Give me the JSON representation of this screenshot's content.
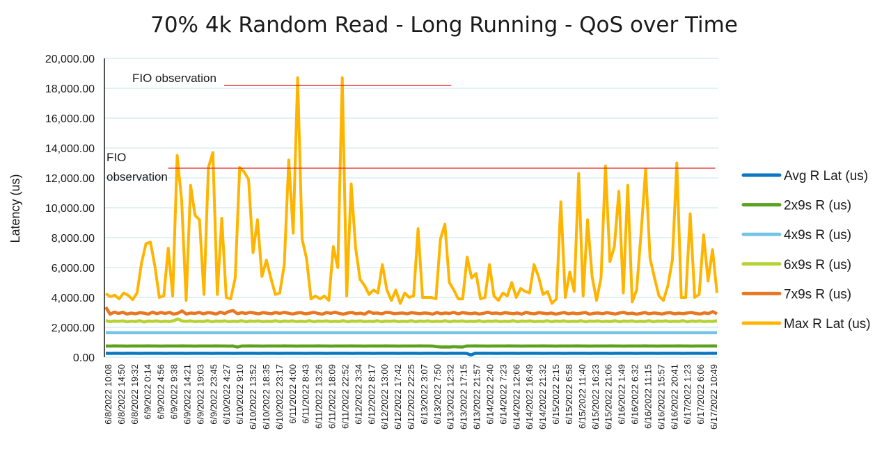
{
  "chart_data": {
    "type": "line",
    "title": "70% 4k Random Read - Long Running - QoS over Time",
    "ylabel": "Latency (us)",
    "xlabel": "",
    "ylim": [
      0,
      20000
    ],
    "yticks": [
      "0.00",
      "2,000.00",
      "4,000.00",
      "6,000.00",
      "8,000.00",
      "10,000.00",
      "12,000.00",
      "14,000.00",
      "16,000.00",
      "18,000.00",
      "20,000.00"
    ],
    "ytick_values": [
      0,
      2000,
      4000,
      6000,
      8000,
      10000,
      12000,
      14000,
      16000,
      18000,
      20000
    ],
    "grid": true,
    "legend": "right",
    "colors": {
      "avg": "#0b77c2",
      "p2x9": "#5ba21f",
      "p4x9": "#74c4e6",
      "p6x9": "#b5d334",
      "p7x9": "#e87722",
      "max": "#ffb400",
      "annotation_line": "#e52222",
      "grid": "#cdeaf2"
    },
    "xtick_labels": [
      "6/8/2022 10:08",
      "6/8/2022 14:50",
      "6/8/2022 19:32",
      "6/9/2022 0:14",
      "6/9/2022 4:56",
      "6/9/2022 9:38",
      "6/9/2022 14:21",
      "6/9/2022 19:03",
      "6/9/2022 23:45",
      "6/10/2022 4:27",
      "6/10/2022 9:10",
      "6/10/2022 13:52",
      "6/10/2022 18:35",
      "6/10/2022 23:17",
      "6/11/2022 4:00",
      "6/11/2022 8:43",
      "6/11/2022 13:26",
      "6/11/2022 18:09",
      "6/11/2022 22:52",
      "6/12/2022 3:34",
      "6/12/2022 8:17",
      "6/12/2022 13:00",
      "6/12/2022 17:42",
      "6/12/2022 22:25",
      "6/13/2022 3:07",
      "6/13/2022 7:50",
      "6/13/2022 12:32",
      "6/13/2022 17:15",
      "6/13/2022 21:57",
      "6/14/2022 2:40",
      "6/14/2022 7:23",
      "6/14/2022 12:06",
      "6/14/2022 16:49",
      "6/14/2022 21:32",
      "6/15/2022 2:15",
      "6/15/2022 6:58",
      "6/15/2022 11:40",
      "6/15/2022 16:23",
      "6/15/2022 21:06",
      "6/16/2022 1:49",
      "6/16/2022 6:32",
      "6/16/2022 11:15",
      "6/16/2022 15:57",
      "6/16/2022 20:41",
      "6/17/2022 1:23",
      "6/17/2022 6:06",
      "6/17/2022 10:49"
    ],
    "annotations": [
      {
        "text": "FIO observation",
        "y": 18200,
        "from": 0.195,
        "to": 0.565
      },
      {
        "text": "FIO observation",
        "y": 12650,
        "from": 0.104,
        "to": 0.995
      }
    ],
    "series": [
      {
        "name": "Avg R Lat (us)",
        "key": "avg",
        "values": [
          260,
          258,
          262,
          260,
          258,
          259,
          261,
          260,
          258,
          260,
          261,
          259,
          260,
          262,
          258,
          260,
          261,
          259,
          260,
          258,
          260,
          261,
          259,
          260,
          262,
          258,
          260,
          261,
          259,
          260,
          258,
          260,
          261,
          259,
          260,
          262,
          258,
          260,
          261,
          259,
          260,
          258,
          260,
          261,
          259,
          260,
          262,
          258,
          260,
          261,
          259,
          260,
          258,
          260,
          261,
          259,
          260,
          262,
          258,
          260,
          261,
          259,
          260,
          258,
          260,
          261,
          259,
          260,
          262,
          258,
          260,
          261,
          259,
          260,
          258,
          260,
          261,
          259,
          260,
          262,
          258,
          260,
          261,
          259,
          260,
          258,
          150,
          260,
          261,
          259,
          260,
          262,
          258,
          260,
          261,
          259,
          260,
          258,
          260,
          261,
          259,
          260,
          262,
          258,
          260,
          261,
          259,
          260,
          258,
          260,
          261,
          259,
          260,
          262,
          258,
          260,
          261,
          259,
          260,
          258,
          260,
          261,
          259,
          260,
          262,
          258,
          260,
          261,
          259,
          260,
          258,
          260,
          261,
          259,
          260,
          262,
          258,
          260,
          261,
          259,
          260,
          258,
          260,
          261,
          259
        ]
      },
      {
        "name": "2x9s R (us)",
        "key": "p2x9",
        "values": [
          750,
          745,
          752,
          748,
          750,
          746,
          751,
          749,
          750,
          747,
          752,
          748,
          750,
          746,
          751,
          749,
          750,
          747,
          752,
          748,
          750,
          746,
          751,
          749,
          750,
          747,
          752,
          748,
          750,
          746,
          751,
          680,
          750,
          747,
          752,
          748,
          750,
          746,
          751,
          749,
          750,
          747,
          752,
          748,
          750,
          746,
          751,
          749,
          750,
          747,
          752,
          748,
          750,
          746,
          751,
          749,
          750,
          747,
          752,
          748,
          750,
          746,
          751,
          749,
          750,
          747,
          752,
          748,
          750,
          746,
          751,
          749,
          750,
          747,
          752,
          748,
          750,
          746,
          700,
          680,
          690,
          680,
          700,
          690,
          680,
          750,
          747,
          752,
          748,
          750,
          746,
          751,
          749,
          750,
          747,
          752,
          748,
          750,
          746,
          751,
          749,
          750,
          747,
          752,
          748,
          750,
          746,
          751,
          749,
          750,
          747,
          752,
          748,
          750,
          746,
          751,
          749,
          750,
          747,
          752,
          748,
          750,
          746,
          751,
          749,
          750,
          747,
          752,
          748,
          750,
          746,
          751,
          749,
          750,
          747,
          752,
          748,
          750,
          746,
          751,
          749,
          750,
          747,
          752,
          748
        ]
      },
      {
        "name": "4x9s R (us)",
        "key": "p4x9",
        "values": [
          1640,
          1635,
          1642,
          1638,
          1640,
          1636,
          1641,
          1639,
          1640,
          1637,
          1642,
          1638,
          1640,
          1636,
          1641,
          1639,
          1640,
          1637,
          1642,
          1638,
          1640,
          1636,
          1641,
          1639,
          1640,
          1637,
          1642,
          1638,
          1640,
          1636,
          1641,
          1639,
          1640,
          1637,
          1642,
          1638,
          1640,
          1636,
          1641,
          1639,
          1640,
          1637,
          1642,
          1638,
          1640,
          1636,
          1641,
          1639,
          1640,
          1637,
          1642,
          1638,
          1640,
          1636,
          1641,
          1639,
          1640,
          1637,
          1642,
          1638,
          1640,
          1636,
          1641,
          1639,
          1640,
          1637,
          1642,
          1638,
          1640,
          1636,
          1641,
          1639,
          1640,
          1637,
          1642,
          1638,
          1640,
          1636,
          1641,
          1639,
          1640,
          1637,
          1642,
          1638,
          1640,
          1636,
          1641,
          1639,
          1640,
          1637,
          1642,
          1638,
          1640,
          1636,
          1641,
          1639,
          1640,
          1637,
          1642,
          1638,
          1640,
          1636,
          1641,
          1639,
          1640,
          1637,
          1642,
          1638,
          1640,
          1636,
          1641,
          1639,
          1640,
          1637,
          1642,
          1638,
          1640,
          1636,
          1641,
          1639,
          1640,
          1637,
          1642,
          1638,
          1640,
          1636,
          1641,
          1639,
          1640,
          1637,
          1642,
          1638,
          1640,
          1636,
          1641,
          1639,
          1640,
          1637,
          1642,
          1638,
          1640,
          1636,
          1641,
          1639,
          1640
        ]
      },
      {
        "name": "6x9s R (us)",
        "key": "p6x9",
        "values": [
          2450,
          2380,
          2420,
          2400,
          2430,
          2370,
          2410,
          2390,
          2440,
          2360,
          2420,
          2400,
          2430,
          2380,
          2410,
          2390,
          2440,
          2560,
          2420,
          2400,
          2430,
          2380,
          2410,
          2390,
          2440,
          2370,
          2420,
          2400,
          2430,
          2380,
          2410,
          2390,
          2440,
          2370,
          2420,
          2400,
          2430,
          2380,
          2410,
          2390,
          2440,
          2370,
          2420,
          2400,
          2430,
          2380,
          2410,
          2390,
          2440,
          2370,
          2420,
          2400,
          2430,
          2380,
          2410,
          2390,
          2440,
          2370,
          2420,
          2400,
          2430,
          2380,
          2410,
          2390,
          2440,
          2370,
          2420,
          2400,
          2430,
          2380,
          2410,
          2390,
          2440,
          2370,
          2420,
          2400,
          2430,
          2380,
          2410,
          2390,
          2440,
          2370,
          2420,
          2400,
          2430,
          2380,
          2410,
          2390,
          2440,
          2370,
          2420,
          2400,
          2430,
          2380,
          2410,
          2390,
          2440,
          2370,
          2420,
          2400,
          2430,
          2380,
          2410,
          2390,
          2440,
          2370,
          2420,
          2400,
          2430,
          2380,
          2410,
          2390,
          2440,
          2370,
          2420,
          2400,
          2430,
          2380,
          2410,
          2390,
          2440,
          2370,
          2420,
          2400,
          2430,
          2380,
          2410,
          2390,
          2440,
          2370,
          2420,
          2400,
          2430,
          2380,
          2410,
          2390,
          2440,
          2370,
          2420,
          2400,
          2430,
          2380,
          2410,
          2390,
          2440
        ]
      },
      {
        "name": "7x9s R (us)",
        "key": "p7x9",
        "values": [
          3350,
          2880,
          3020,
          2930,
          3010,
          2890,
          2960,
          2900,
          2980,
          2950,
          2880,
          3020,
          2910,
          2990,
          2930,
          3000,
          2880,
          2950,
          3100,
          2890,
          2960,
          2930,
          3000,
          2900,
          2980,
          2960,
          2890,
          3020,
          2920,
          3060,
          3120,
          2910,
          2980,
          2930,
          3000,
          2960,
          2900,
          2980,
          2950,
          2910,
          2990,
          2930,
          3000,
          2950,
          2890,
          2960,
          2980,
          2900,
          2950,
          3000,
          2930,
          2880,
          2990,
          2940,
          3010,
          2930,
          2880,
          2960,
          2990,
          2910,
          2950,
          2880,
          3050,
          2940,
          2960,
          2900,
          3000,
          2980,
          2910,
          2940,
          2960,
          2900,
          2980,
          2950,
          2910,
          2960,
          2940,
          2880,
          2990,
          2910,
          2960,
          2930,
          3000,
          2900,
          2980,
          2950,
          2910,
          2960,
          2890,
          2940,
          3010,
          2930,
          2960,
          2900,
          2980,
          2950,
          2910,
          2960,
          2880,
          3000,
          2940,
          2900,
          2980,
          2950,
          2910,
          2960,
          2880,
          2940,
          2990,
          2900,
          2960,
          2910,
          2950,
          2990,
          2880,
          2940,
          2960,
          2910,
          2980,
          2940,
          2890,
          2960,
          3000,
          2910,
          2950,
          2880,
          2930,
          2990,
          2900,
          2960,
          2940,
          2890,
          2960,
          2980,
          2900,
          2950,
          2910,
          2960,
          2990,
          2930,
          2890,
          2970,
          2920,
          3050,
          2900
        ]
      },
      {
        "name": "Max R Lat (us)",
        "key": "max",
        "values": [
          4250,
          4050,
          4150,
          3900,
          4300,
          4150,
          3850,
          4300,
          6300,
          7600,
          7700,
          6100,
          4000,
          4100,
          7300,
          4100,
          13500,
          10500,
          3800,
          11500,
          9500,
          9200,
          4200,
          12700,
          13700,
          4200,
          9300,
          4000,
          3900,
          5300,
          12700,
          12400,
          11900,
          7000,
          9200,
          5400,
          6500,
          5300,
          4200,
          4300,
          6200,
          13200,
          8300,
          18700,
          7900,
          6600,
          3900,
          4100,
          3900,
          4100,
          3800,
          7400,
          6000,
          18700,
          4100,
          11600,
          7300,
          5200,
          4800,
          4200,
          4500,
          4300,
          6200,
          4500,
          3800,
          4500,
          3600,
          4300,
          4000,
          4100,
          8600,
          4000,
          4000,
          4000,
          3900,
          7900,
          8900,
          5000,
          4500,
          3900,
          3900,
          6700,
          5300,
          5600,
          3900,
          4000,
          6200,
          4100,
          3800,
          4300,
          4100,
          5000,
          4000,
          4600,
          4400,
          4300,
          6200,
          5400,
          4200,
          4400,
          3600,
          3900,
          10400,
          4000,
          5700,
          4400,
          12300,
          4100,
          9200,
          5400,
          3800,
          5300,
          12800,
          6400,
          7400,
          11100,
          4300,
          11500,
          3700,
          4500,
          8400,
          12600,
          6600,
          5300,
          4100,
          3800,
          4800,
          6500,
          13000,
          4000,
          4000,
          9600,
          4000,
          4200,
          8200,
          5100,
          7200,
          4300
        ]
      }
    ]
  }
}
